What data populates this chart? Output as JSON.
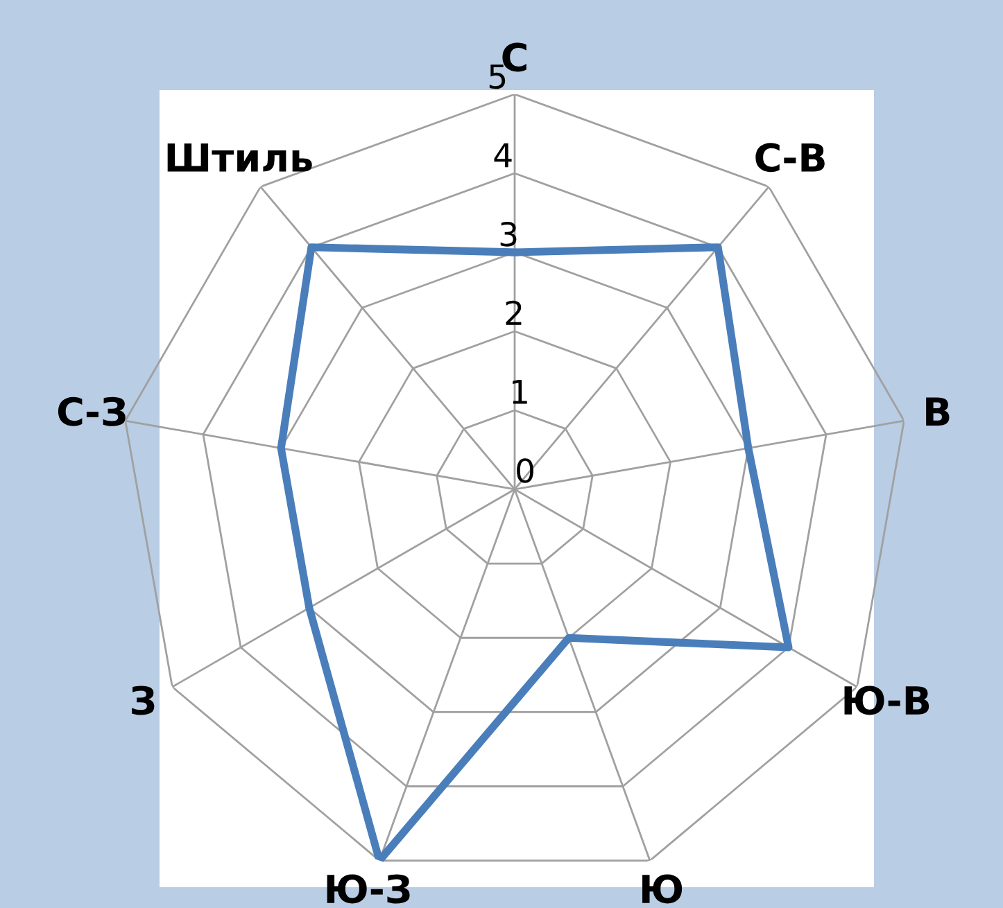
{
  "chart_data": {
    "type": "radar",
    "categories": [
      "С",
      "С-В",
      "В",
      "Ю-В",
      "Ю",
      "Ю-З",
      "З",
      "С-З",
      "Штиль"
    ],
    "series": [
      {
        "color": "#4a7ebb",
        "values": [
          3,
          4,
          3,
          4,
          2,
          5,
          3,
          3,
          4
        ]
      }
    ],
    "ylim": [
      0,
      5
    ],
    "yticks": [
      0,
      1,
      2,
      3,
      4,
      5
    ],
    "grid": true,
    "marker": "none",
    "line_style": "solid"
  }
}
